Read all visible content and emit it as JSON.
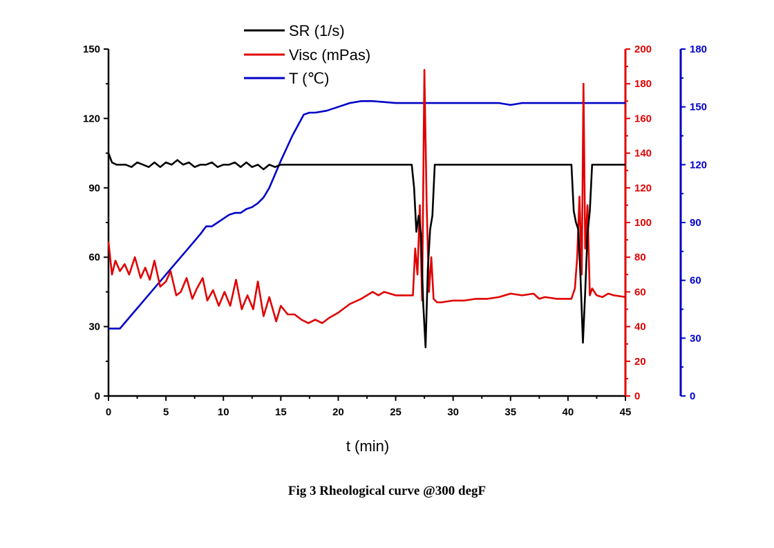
{
  "caption": "Fig 3 Rheological curve @300 degF",
  "chart_data": {
    "type": "line",
    "title": "",
    "xlabel": "t (min)",
    "xlim": [
      0,
      45
    ],
    "x_ticks": [
      0,
      5,
      10,
      15,
      20,
      25,
      30,
      35,
      40,
      45
    ],
    "y_axes": [
      {
        "id": "left",
        "series": "SR (1/s)",
        "lim": [
          0,
          150
        ],
        "ticks": [
          0,
          30,
          60,
          90,
          120,
          150
        ],
        "color": "#000000"
      },
      {
        "id": "right1",
        "series": "Visc (mPas)",
        "lim": [
          0,
          200
        ],
        "ticks": [
          0,
          20,
          40,
          60,
          80,
          100,
          120,
          140,
          160,
          180,
          200
        ],
        "color": "#e00000"
      },
      {
        "id": "right2",
        "series": "T (℃)",
        "lim": [
          0,
          180
        ],
        "ticks": [
          0,
          30,
          60,
          90,
          120,
          150,
          180
        ],
        "color": "#0000c8"
      }
    ],
    "legend_position": "top-center",
    "grid": false,
    "series": [
      {
        "name": "SR (1/s)",
        "axis": "left",
        "color": "#000000",
        "points": [
          [
            0,
            105
          ],
          [
            0.3,
            101
          ],
          [
            0.7,
            100
          ],
          [
            1,
            100
          ],
          [
            1.5,
            100
          ],
          [
            2,
            99
          ],
          [
            2.5,
            101
          ],
          [
            3,
            100
          ],
          [
            3.5,
            99
          ],
          [
            4,
            101
          ],
          [
            4.5,
            99
          ],
          [
            5,
            101
          ],
          [
            5.5,
            100
          ],
          [
            6,
            102
          ],
          [
            6.5,
            100
          ],
          [
            7,
            101
          ],
          [
            7.5,
            99
          ],
          [
            8,
            100
          ],
          [
            8.5,
            100
          ],
          [
            9,
            101
          ],
          [
            9.5,
            99
          ],
          [
            10,
            100
          ],
          [
            10.5,
            100
          ],
          [
            11,
            101
          ],
          [
            11.5,
            99
          ],
          [
            12,
            101
          ],
          [
            12.5,
            99
          ],
          [
            13,
            100
          ],
          [
            13.5,
            98
          ],
          [
            14,
            100
          ],
          [
            14.5,
            99
          ],
          [
            15,
            100
          ],
          [
            16,
            100
          ],
          [
            20,
            100
          ],
          [
            26.4,
            100
          ],
          [
            26.6,
            90
          ],
          [
            26.8,
            71
          ],
          [
            27,
            78
          ],
          [
            27.2,
            70
          ],
          [
            27.4,
            40
          ],
          [
            27.6,
            21
          ],
          [
            27.8,
            55
          ],
          [
            28,
            72
          ],
          [
            28.2,
            78
          ],
          [
            28.4,
            100
          ],
          [
            40.3,
            100
          ],
          [
            40.5,
            80
          ],
          [
            40.7,
            75
          ],
          [
            40.9,
            72
          ],
          [
            41.1,
            50
          ],
          [
            41.3,
            23
          ],
          [
            41.5,
            45
          ],
          [
            41.7,
            70
          ],
          [
            41.9,
            80
          ],
          [
            42.1,
            100
          ],
          [
            45,
            100
          ]
        ]
      },
      {
        "name": "Visc (mPas)",
        "axis": "right1",
        "color": "#e00000",
        "points": [
          [
            0,
            89
          ],
          [
            0.3,
            70
          ],
          [
            0.6,
            78
          ],
          [
            1,
            72
          ],
          [
            1.4,
            76
          ],
          [
            1.8,
            70
          ],
          [
            2.3,
            80
          ],
          [
            2.8,
            68
          ],
          [
            3.2,
            74
          ],
          [
            3.6,
            67
          ],
          [
            4,
            78
          ],
          [
            4.5,
            63
          ],
          [
            5,
            66
          ],
          [
            5.4,
            72
          ],
          [
            5.9,
            58
          ],
          [
            6.3,
            60
          ],
          [
            6.8,
            68
          ],
          [
            7.3,
            56
          ],
          [
            7.7,
            62
          ],
          [
            8.2,
            68
          ],
          [
            8.6,
            55
          ],
          [
            9.1,
            61
          ],
          [
            9.6,
            52
          ],
          [
            10.1,
            60
          ],
          [
            10.6,
            52
          ],
          [
            11.1,
            67
          ],
          [
            11.6,
            50
          ],
          [
            12.1,
            58
          ],
          [
            12.6,
            50
          ],
          [
            13,
            66
          ],
          [
            13.5,
            46
          ],
          [
            14,
            57
          ],
          [
            14.6,
            43
          ],
          [
            15,
            52
          ],
          [
            15.6,
            47
          ],
          [
            16.2,
            47
          ],
          [
            16.8,
            44
          ],
          [
            17.4,
            42
          ],
          [
            18,
            44
          ],
          [
            18.6,
            42
          ],
          [
            19.2,
            45
          ],
          [
            20,
            48
          ],
          [
            21,
            53
          ],
          [
            22,
            56
          ],
          [
            23,
            60
          ],
          [
            23.5,
            58
          ],
          [
            24,
            60
          ],
          [
            25,
            58
          ],
          [
            26,
            58
          ],
          [
            26.5,
            58
          ],
          [
            26.7,
            85
          ],
          [
            26.9,
            70
          ],
          [
            27.1,
            110
          ],
          [
            27.3,
            55
          ],
          [
            27.5,
            188
          ],
          [
            27.7,
            110
          ],
          [
            27.9,
            60
          ],
          [
            28.1,
            80
          ],
          [
            28.3,
            56
          ],
          [
            28.6,
            54
          ],
          [
            29,
            54
          ],
          [
            30,
            55
          ],
          [
            31,
            55
          ],
          [
            32,
            56
          ],
          [
            33,
            56
          ],
          [
            34,
            57
          ],
          [
            35,
            59
          ],
          [
            36,
            58
          ],
          [
            37,
            59
          ],
          [
            37.5,
            56
          ],
          [
            38,
            57
          ],
          [
            39,
            56
          ],
          [
            40,
            56
          ],
          [
            40.3,
            56
          ],
          [
            40.6,
            62
          ],
          [
            40.8,
            80
          ],
          [
            41,
            115
          ],
          [
            41.2,
            70
          ],
          [
            41.35,
            180
          ],
          [
            41.5,
            85
          ],
          [
            41.7,
            110
          ],
          [
            41.9,
            58
          ],
          [
            42.1,
            62
          ],
          [
            42.5,
            58
          ],
          [
            43,
            57
          ],
          [
            43.5,
            59
          ],
          [
            44,
            58
          ],
          [
            45,
            57
          ]
        ]
      },
      {
        "name": "T (℃)",
        "axis": "right2",
        "color": "#0000c8",
        "points": [
          [
            0,
            35
          ],
          [
            1,
            35
          ],
          [
            2,
            42
          ],
          [
            3,
            49
          ],
          [
            4,
            56
          ],
          [
            5,
            63
          ],
          [
            6,
            70
          ],
          [
            7,
            77
          ],
          [
            8,
            84
          ],
          [
            8.5,
            88
          ],
          [
            9,
            88
          ],
          [
            9.5,
            90
          ],
          [
            10,
            92
          ],
          [
            10.5,
            94
          ],
          [
            11,
            95
          ],
          [
            11.5,
            95
          ],
          [
            12,
            97
          ],
          [
            12.5,
            98
          ],
          [
            13,
            100
          ],
          [
            13.5,
            103
          ],
          [
            14,
            108
          ],
          [
            14.5,
            115
          ],
          [
            15,
            122
          ],
          [
            16,
            135
          ],
          [
            17,
            146
          ],
          [
            17.5,
            147
          ],
          [
            18,
            147
          ],
          [
            19,
            148
          ],
          [
            20,
            150
          ],
          [
            21,
            152
          ],
          [
            22,
            153
          ],
          [
            23,
            153
          ],
          [
            25,
            152
          ],
          [
            30,
            152
          ],
          [
            34,
            152
          ],
          [
            35,
            151
          ],
          [
            36,
            152
          ],
          [
            40,
            152
          ],
          [
            45,
            152
          ]
        ]
      }
    ]
  }
}
